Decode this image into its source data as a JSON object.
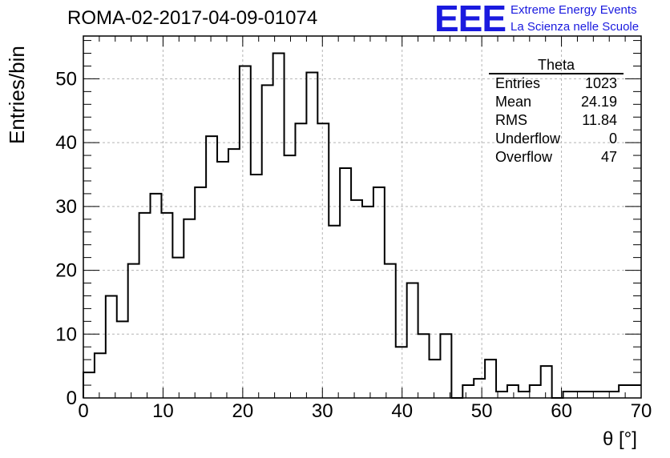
{
  "title": "ROMA-02-2017-04-09-01074",
  "logo": {
    "mark": "EEE",
    "line1": "Extreme Energy Events",
    "line2": "La Scienza nelle Scuole",
    "color": "#1a1adf"
  },
  "stats_box": {
    "title": "Theta",
    "rows": [
      {
        "label": "Entries",
        "value": "1023"
      },
      {
        "label": "Mean",
        "value": "24.19"
      },
      {
        "label": "RMS",
        "value": "11.84"
      },
      {
        "label": "Underflow",
        "value": "0"
      },
      {
        "label": "Overflow",
        "value": "47"
      }
    ]
  },
  "chart_data": {
    "type": "histogram",
    "xlabel": "θ [°]",
    "ylabel": "Entries/bin",
    "xlim": [
      0,
      70
    ],
    "ylim": [
      0,
      56.7
    ],
    "grid": true,
    "bin_width": 1.4,
    "x_ticks": [
      0,
      10,
      20,
      30,
      40,
      50,
      60,
      70
    ],
    "y_ticks": [
      0,
      10,
      20,
      30,
      40,
      50
    ],
    "values": [
      4,
      7,
      16,
      12,
      21,
      29,
      32,
      29,
      22,
      28,
      33,
      41,
      37,
      39,
      52,
      35,
      49,
      54,
      38,
      43,
      51,
      43,
      27,
      36,
      31,
      30,
      33,
      21,
      8,
      18,
      10,
      6,
      10,
      0,
      2,
      3,
      6,
      1,
      2,
      1,
      2,
      5,
      0,
      1,
      1,
      1,
      1,
      1,
      2,
      2
    ],
    "line_color": "#000000",
    "grid_color": "#b4b4b4"
  }
}
